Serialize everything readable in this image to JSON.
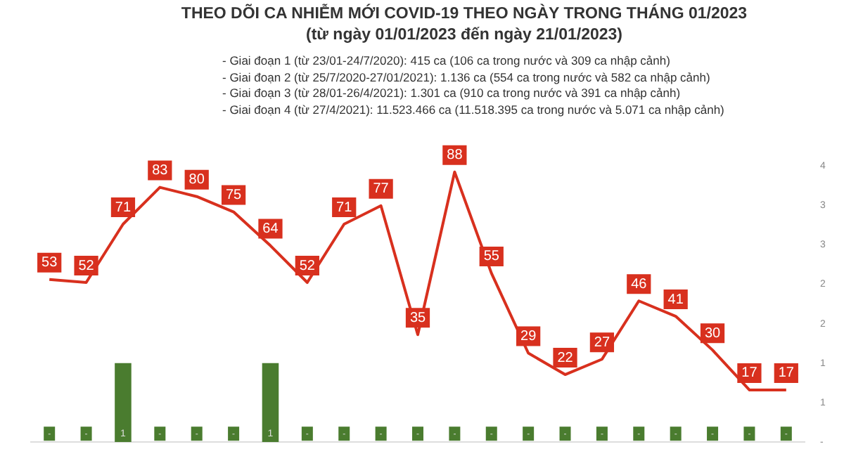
{
  "chart_data": {
    "type": "bar",
    "title": "THEO DÕI CA NHIỄM MỚI COVID-19 THEO NGÀY TRONG THÁNG 01/2023",
    "subtitle": "(từ ngày 01/01/2023 đến ngày 21/01/2023)",
    "annotations": [
      "- Giai đoạn 1 (từ 23/01-24/7/2020): 415 ca (106 ca trong nước và 309 ca nhập cảnh)",
      "- Giai đoạn 2 (từ 25/7/2020-27/01/2021): 1.136 ca (554 ca trong nước và 582 ca nhập cảnh)",
      "- Giai đoạn 3 (từ 28/01-26/4/2021): 1.301 ca (910 ca trong nước và 391 ca nhập cảnh)",
      "- Giai đoạn 4 (từ 27/4/2021): 11.523.466 ca (11.518.395 ca trong nước và 5.071 ca nhập cảnh)"
    ],
    "categories": [
      null,
      null,
      null,
      null,
      null,
      null,
      null,
      null,
      null,
      null,
      null,
      null,
      null,
      null,
      null,
      null,
      null,
      null,
      null,
      null,
      null
    ],
    "series": [
      {
        "type": "line",
        "color": "#d8301e",
        "values": [
          53,
          52,
          71,
          83,
          80,
          75,
          64,
          52,
          71,
          77,
          35,
          88,
          55,
          29,
          22,
          27,
          46,
          41,
          30,
          17,
          17
        ],
        "value_labels": [
          "53",
          "52",
          "71",
          "83",
          "80",
          "75",
          "64",
          "52",
          "71",
          "77",
          "35",
          "88",
          "55",
          "29",
          "22",
          "27",
          "46",
          "41",
          "30",
          "17",
          "17"
        ]
      },
      {
        "axis": "y2",
        "color": "#4a7c2f",
        "values": [
          0,
          0,
          1,
          0,
          0,
          0,
          1,
          0,
          0,
          0,
          0,
          0,
          0,
          0,
          0,
          0,
          0,
          0,
          0,
          0,
          0
        ],
        "value_labels": [
          "-",
          "-",
          "1",
          "-",
          "-",
          "-",
          "1",
          "-",
          "-",
          "-",
          "-",
          "-",
          "-",
          "-",
          "-",
          "-",
          "-",
          "-",
          "-",
          "-",
          "-"
        ]
      }
    ],
    "y2lim": [
      0,
      3.5
    ],
    "y2ticks": [
      {
        "value": 0,
        "label": "-"
      },
      {
        "value": 0.5,
        "label": "1"
      },
      {
        "value": 1,
        "label": "1"
      },
      {
        "value": 1.5,
        "label": "2"
      },
      {
        "value": 2,
        "label": "2"
      },
      {
        "value": 2.5,
        "label": "3"
      },
      {
        "value": 3,
        "label": "3"
      },
      {
        "value": 3.5,
        "label": "4"
      }
    ],
    "grid": false,
    "legend": false
  }
}
